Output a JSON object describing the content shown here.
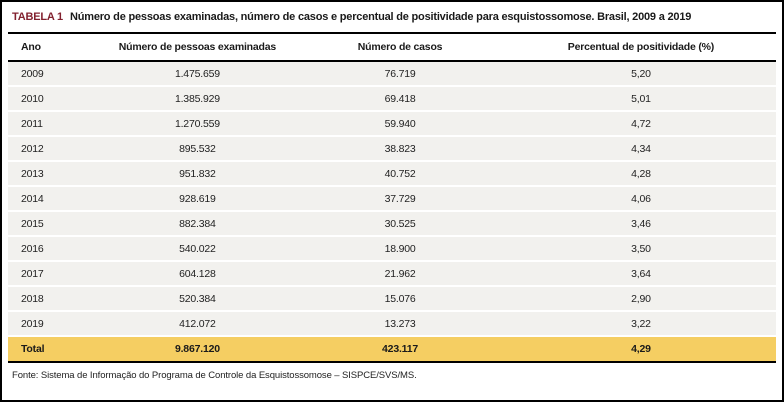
{
  "table": {
    "tag": "TABELA 1",
    "title": "Número de pessoas examinadas, número de casos e percentual de positividade para esquistossomose. Brasil, 2009 a 2019",
    "columns": [
      "Ano",
      "Número de pessoas examinadas",
      "Número de casos",
      "Percentual de positividade (%)"
    ],
    "rows": [
      [
        "2009",
        "1.475.659",
        "76.719",
        "5,20"
      ],
      [
        "2010",
        "1.385.929",
        "69.418",
        "5,01"
      ],
      [
        "2011",
        "1.270.559",
        "59.940",
        "4,72"
      ],
      [
        "2012",
        "895.532",
        "38.823",
        "4,34"
      ],
      [
        "2013",
        "951.832",
        "40.752",
        "4,28"
      ],
      [
        "2014",
        "928.619",
        "37.729",
        "4,06"
      ],
      [
        "2015",
        "882.384",
        "30.525",
        "3,46"
      ],
      [
        "2016",
        "540.022",
        "18.900",
        "3,50"
      ],
      [
        "2017",
        "604.128",
        "21.962",
        "3,64"
      ],
      [
        "2018",
        "520.384",
        "15.076",
        "2,90"
      ],
      [
        "2019",
        "412.072",
        "13.273",
        "3,22"
      ]
    ],
    "total": [
      "Total",
      "9.867.120",
      "423.117",
      "4,29"
    ],
    "source": "Fonte: Sistema de Informação do Programa de Controle da Esquistossomose – SISPCE/SVS/MS.",
    "colors": {
      "tag_color": "#82212f",
      "total_row_bg": "#f5ce62",
      "row_bg": "#f2f1ee",
      "border": "#000000"
    }
  }
}
